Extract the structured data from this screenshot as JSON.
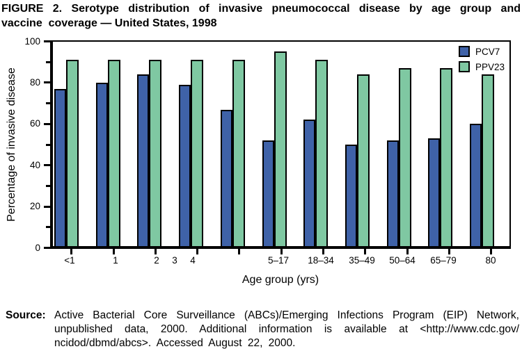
{
  "title": {
    "line1": "FIGURE 2. Serotype distribution of invasive pneumococcal disease by age group and",
    "line2": "vaccine  coverage — United States, 1998"
  },
  "chart_data": {
    "type": "bar",
    "title": "FIGURE 2. Serotype distribution of invasive pneumococcal disease by age group and vaccine coverage — United States, 1998",
    "categories": [
      "<1",
      "1",
      "2",
      "3",
      "4",
      "5–17",
      "18–34",
      "35–49",
      "50–64",
      "65–79",
      "80"
    ],
    "series": [
      {
        "name": "PCV7",
        "color": "#3F62A8",
        "values": [
          77,
          80,
          84,
          79,
          67,
          52,
          62,
          50,
          52,
          53,
          60
        ]
      },
      {
        "name": "PPV23",
        "color": "#7FC8A2",
        "values": [
          91,
          91,
          91,
          91,
          91,
          95,
          91,
          84,
          87,
          87,
          84
        ]
      }
    ],
    "xlabel": "Age group (yrs)",
    "ylabel": "Percentage of invasive disease",
    "ylim": [
      0,
      100
    ],
    "yticks_major": [
      0,
      20,
      40,
      60,
      80,
      100
    ],
    "yticks_minor": [
      10,
      30,
      50,
      70,
      90
    ],
    "grid": false,
    "legend_position": "top-right",
    "bar_outline_color": "#000000",
    "frame_color": "#000000"
  },
  "source": {
    "label": "Source:",
    "lines": [
      "Active Bacterial Core Surveillance (ABCs)/Emerging Infections Program (EIP) Network,",
      "unpublished data, 2000. Additional information is available at <http://www.cdc.gov/",
      "ncidod/dbmd/abcs>. Accessed August 22, 2000."
    ]
  }
}
